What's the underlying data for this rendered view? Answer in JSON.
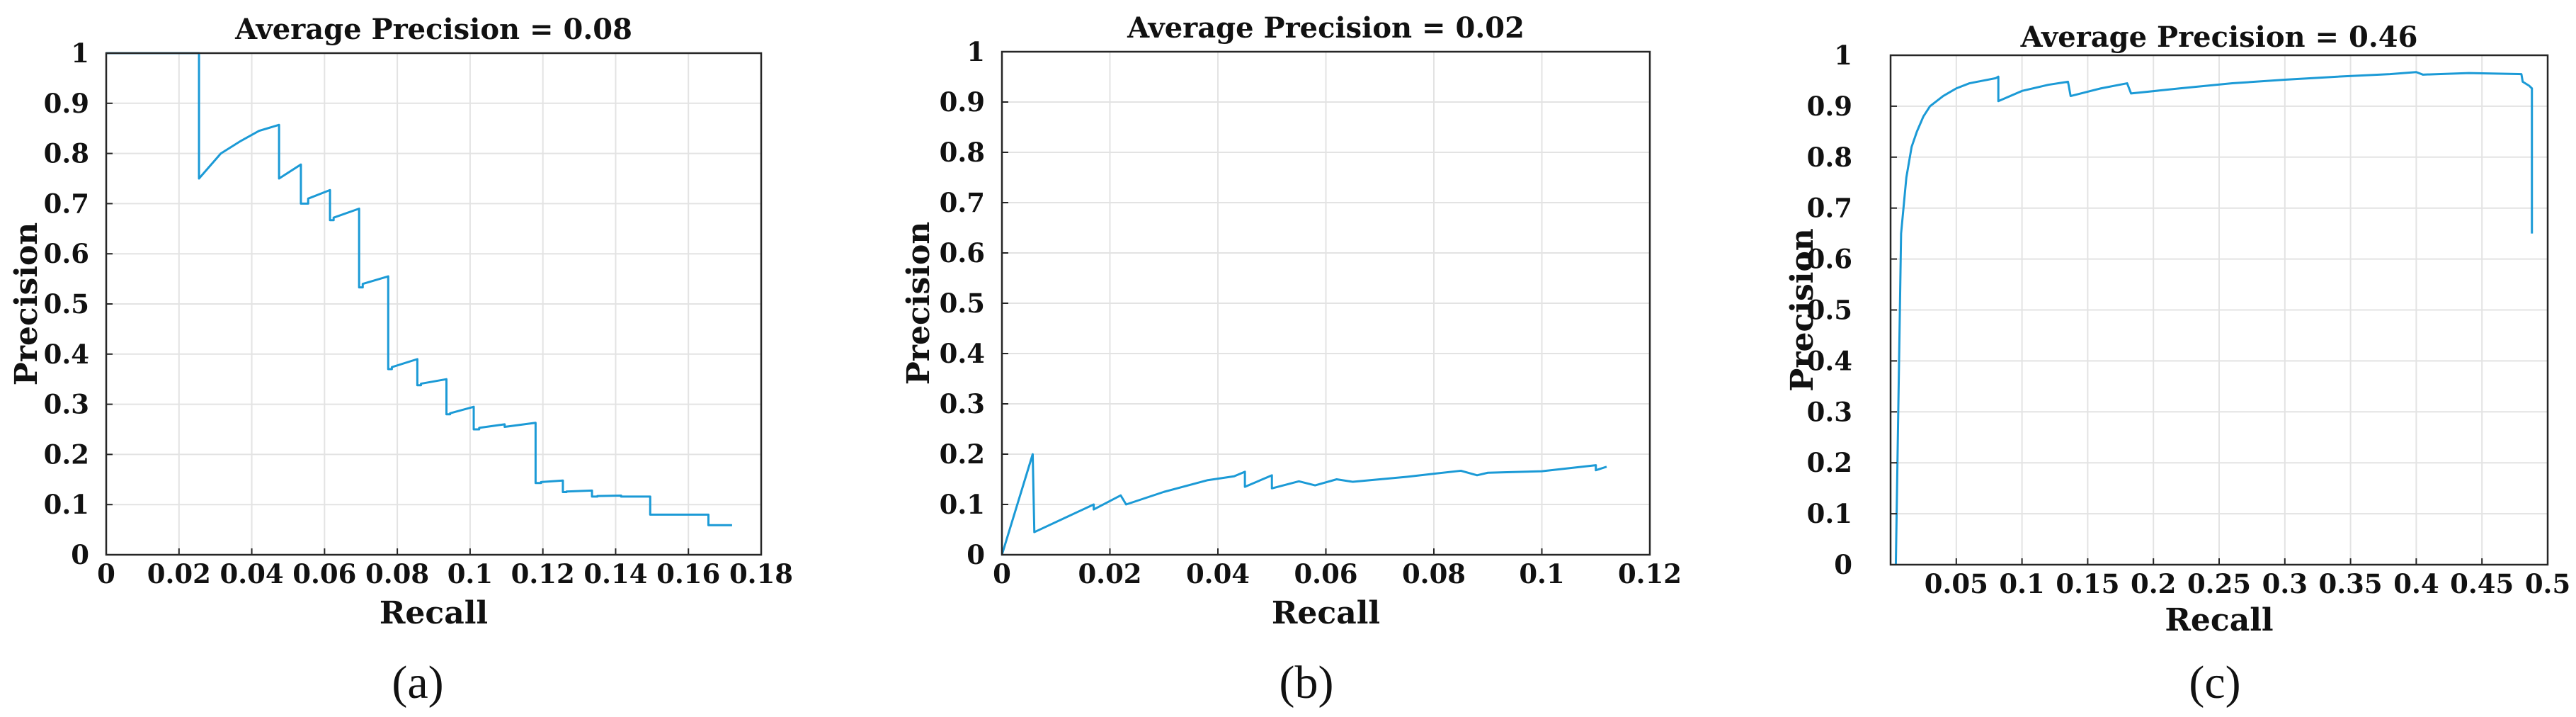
{
  "style": {
    "line_color": "#1b9ad6",
    "axis_color": "#262626",
    "grid_color": "#e3e3e3"
  },
  "chart_data": [
    {
      "type": "line",
      "title": "Average Precision = 0.08",
      "caption": "(a)",
      "xlabel": "Recall",
      "ylabel": "Precision",
      "xlim": [
        0,
        0.18
      ],
      "ylim": [
        0,
        1
      ],
      "xticks": [
        0,
        0.02,
        0.04,
        0.06,
        0.08,
        0.1,
        0.12,
        0.14,
        0.16,
        0.18
      ],
      "xtick_labels": [
        "0",
        "0.02",
        "0.04",
        "0.06",
        "0.08",
        "0.1",
        "0.12",
        "0.14",
        "0.16",
        "0.18"
      ],
      "yticks": [
        0,
        0.1,
        0.2,
        0.3,
        0.4,
        0.5,
        0.6,
        0.7,
        0.8,
        0.9,
        1
      ],
      "ytick_labels": [
        "0",
        "0.1",
        "0.2",
        "0.3",
        "0.4",
        "0.5",
        "0.6",
        "0.7",
        "0.8",
        "0.9",
        "1"
      ],
      "x": [
        0,
        0.0255,
        0.0255,
        0.0315,
        0.037,
        0.042,
        0.0475,
        0.0475,
        0.0535,
        0.0535,
        0.0555,
        0.0555,
        0.0615,
        0.0615,
        0.0625,
        0.0625,
        0.0695,
        0.0695,
        0.0705,
        0.0705,
        0.0775,
        0.0775,
        0.0785,
        0.0785,
        0.0855,
        0.0855,
        0.0865,
        0.0865,
        0.0935,
        0.0935,
        0.0945,
        0.0945,
        0.101,
        0.101,
        0.1025,
        0.1025,
        0.1095,
        0.1095,
        0.118,
        0.118,
        0.1195,
        0.1195,
        0.1255,
        0.1255,
        0.1265,
        0.1265,
        0.1335,
        0.1335,
        0.135,
        0.135,
        0.1415,
        0.1415,
        0.1495,
        0.1495,
        0.1655,
        0.1655,
        0.172
      ],
      "y": [
        1,
        1,
        0.75,
        0.8,
        0.825,
        0.845,
        0.857,
        0.75,
        0.778,
        0.7,
        0.7,
        0.71,
        0.727,
        0.667,
        0.667,
        0.672,
        0.69,
        0.533,
        0.533,
        0.54,
        0.555,
        0.37,
        0.37,
        0.374,
        0.39,
        0.338,
        0.338,
        0.341,
        0.35,
        0.28,
        0.28,
        0.282,
        0.295,
        0.25,
        0.25,
        0.253,
        0.26,
        0.255,
        0.263,
        0.143,
        0.143,
        0.145,
        0.148,
        0.125,
        0.125,
        0.126,
        0.128,
        0.116,
        0.116,
        0.117,
        0.118,
        0.116,
        0.116,
        0.08,
        0.08,
        0.059,
        0.059
      ]
    },
    {
      "type": "line",
      "title": "Average Precision = 0.02",
      "caption": "(b)",
      "xlabel": "Recall",
      "ylabel": "Precision",
      "xlim": [
        0,
        0.12
      ],
      "ylim": [
        0,
        1
      ],
      "xticks": [
        0,
        0.02,
        0.04,
        0.06,
        0.08,
        0.1,
        0.12
      ],
      "xtick_labels": [
        "0",
        "0.02",
        "0.04",
        "0.06",
        "0.08",
        "0.1",
        "0.12"
      ],
      "yticks": [
        0,
        0.1,
        0.2,
        0.3,
        0.4,
        0.5,
        0.6,
        0.7,
        0.8,
        0.9,
        1
      ],
      "ytick_labels": [
        "0",
        "0.1",
        "0.2",
        "0.3",
        "0.4",
        "0.5",
        "0.6",
        "0.7",
        "0.8",
        "0.9",
        "1"
      ],
      "x": [
        0,
        0.0057,
        0.006,
        0.012,
        0.017,
        0.017,
        0.022,
        0.023,
        0.03,
        0.038,
        0.043,
        0.045,
        0.045,
        0.05,
        0.05,
        0.055,
        0.058,
        0.062,
        0.065,
        0.075,
        0.085,
        0.088,
        0.09,
        0.1,
        0.11,
        0.11,
        0.112
      ],
      "y": [
        0,
        0.2,
        0.045,
        0.075,
        0.1,
        0.09,
        0.118,
        0.1,
        0.125,
        0.148,
        0.156,
        0.165,
        0.135,
        0.158,
        0.132,
        0.146,
        0.138,
        0.15,
        0.145,
        0.155,
        0.167,
        0.158,
        0.163,
        0.166,
        0.178,
        0.168,
        0.175
      ]
    },
    {
      "type": "line",
      "title": "Average Precision = 0.46",
      "caption": "(c)",
      "xlabel": "Recall",
      "ylabel": "Precision",
      "xlim": [
        0,
        0.5
      ],
      "ylim": [
        0,
        1
      ],
      "xticks": [
        0.05,
        0.1,
        0.15,
        0.2,
        0.25,
        0.3,
        0.35,
        0.4,
        0.45,
        0.5
      ],
      "xtick_labels": [
        "0.05",
        "0.1",
        "0.15",
        "0.2",
        "0.25",
        "0.3",
        "0.35",
        "0.4",
        "0.45",
        "0.5"
      ],
      "yticks": [
        0,
        0.1,
        0.2,
        0.3,
        0.4,
        0.5,
        0.6,
        0.7,
        0.8,
        0.9,
        1
      ],
      "ytick_labels": [
        "0",
        "0.1",
        "0.2",
        "0.3",
        "0.4",
        "0.5",
        "0.6",
        "0.7",
        "0.8",
        "0.9",
        "1"
      ],
      "x": [
        0.004,
        0.008,
        0.012,
        0.016,
        0.02,
        0.025,
        0.03,
        0.04,
        0.05,
        0.06,
        0.07,
        0.08,
        0.082,
        0.082,
        0.1,
        0.12,
        0.135,
        0.137,
        0.16,
        0.18,
        0.183,
        0.22,
        0.26,
        0.3,
        0.34,
        0.38,
        0.4,
        0.405,
        0.44,
        0.48,
        0.481,
        0.486,
        0.488,
        0.488
      ],
      "y": [
        0,
        0.65,
        0.76,
        0.82,
        0.85,
        0.88,
        0.9,
        0.92,
        0.935,
        0.945,
        0.95,
        0.955,
        0.958,
        0.91,
        0.93,
        0.942,
        0.948,
        0.92,
        0.935,
        0.945,
        0.925,
        0.935,
        0.945,
        0.952,
        0.958,
        0.963,
        0.967,
        0.962,
        0.965,
        0.963,
        0.948,
        0.94,
        0.935,
        0.65
      ]
    }
  ]
}
